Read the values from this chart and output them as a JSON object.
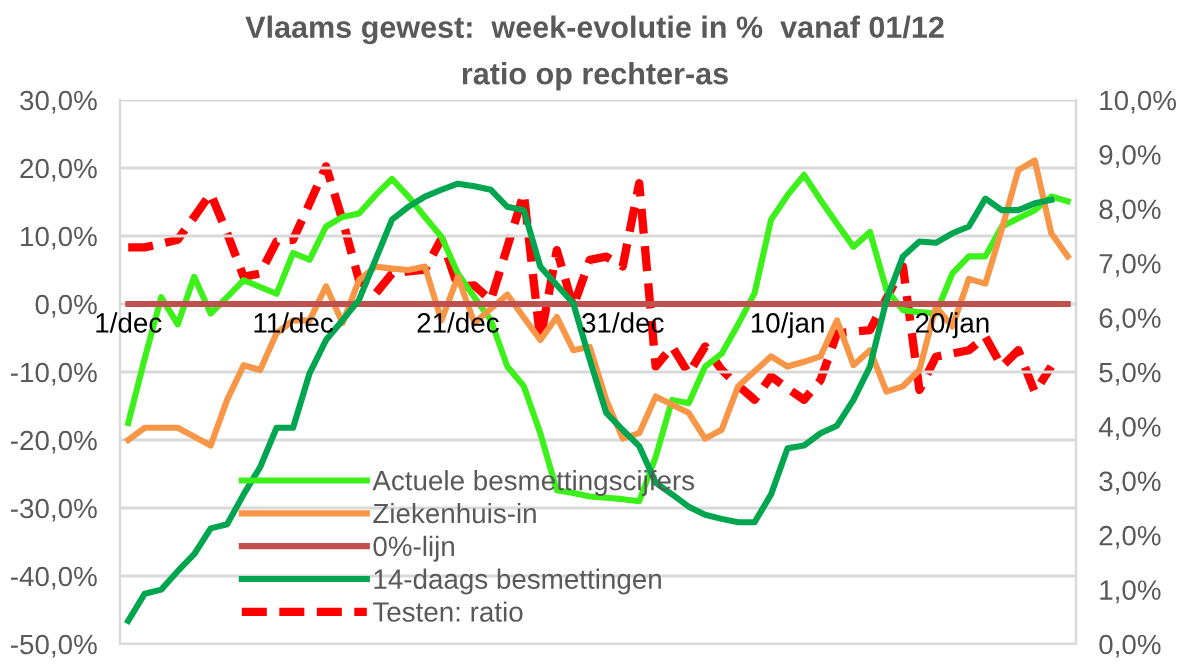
{
  "chart_data": {
    "type": "line",
    "title": "Vlaams gewest:  week-evolutie in %  vanaf 01/12",
    "subtitle": "ratio op rechter-as",
    "categories": [
      "1/dec",
      null,
      null,
      null,
      null,
      null,
      null,
      null,
      null,
      null,
      "11/dec",
      null,
      null,
      null,
      null,
      null,
      null,
      null,
      null,
      null,
      "21/dec",
      null,
      null,
      null,
      null,
      null,
      null,
      null,
      null,
      null,
      "31/dec",
      null,
      null,
      null,
      null,
      null,
      null,
      null,
      null,
      null,
      "10/jan",
      null,
      null,
      null,
      null,
      null,
      null,
      null,
      null,
      null,
      "20/jan",
      null,
      null,
      null,
      null,
      null,
      null,
      null
    ],
    "ylim": [
      -50,
      30
    ],
    "yticks": [
      {
        "value": -50,
        "label": "-50,0%"
      },
      {
        "value": -40,
        "label": "-40,0%"
      },
      {
        "value": -30,
        "label": "-30,0%"
      },
      {
        "value": -20,
        "label": "-20,0%"
      },
      {
        "value": -10,
        "label": "-10,0%"
      },
      {
        "value": 0,
        "label": "0,0%"
      },
      {
        "value": 10,
        "label": "10,0%"
      },
      {
        "value": 20,
        "label": "20,0%"
      },
      {
        "value": 30,
        "label": "30,0%"
      }
    ],
    "y2lim": [
      0,
      10
    ],
    "y2ticks": [
      {
        "value": 0,
        "label": "0,0%"
      },
      {
        "value": 1,
        "label": "1,0%"
      },
      {
        "value": 2,
        "label": "2,0%"
      },
      {
        "value": 3,
        "label": "3,0%"
      },
      {
        "value": 4,
        "label": "4,0%"
      },
      {
        "value": 5,
        "label": "5,0%"
      },
      {
        "value": 6,
        "label": "6,0%"
      },
      {
        "value": 7,
        "label": "7,0%"
      },
      {
        "value": 8,
        "label": "8,0%"
      },
      {
        "value": 9,
        "label": "9,0%"
      },
      {
        "value": 10,
        "label": "10,0%"
      }
    ],
    "grid": "y",
    "legend": "bottom left",
    "series": [
      {
        "name": "Actuele besmettingscijfers",
        "color": "#3cf01a",
        "line_style": "solid",
        "values": [
          -17.5,
          -8,
          1,
          -3,
          4,
          -1.4,
          1,
          3.5,
          2.5,
          1.5,
          7.5,
          6.5,
          11.4,
          12.8,
          13.3,
          16,
          18.4,
          15.8,
          12.8,
          9.9,
          4.5,
          1,
          -2.4,
          -9.2,
          -12.1,
          -19,
          -27.4,
          -27.8,
          -28.3,
          -28.5,
          -28.7,
          -29,
          -22.5,
          -14.1,
          -14.6,
          -9.2,
          -7.3,
          -3,
          1.6,
          12.4,
          16,
          19,
          15.3,
          11.8,
          8.4,
          10.6,
          2.1,
          -0.9,
          -1.2,
          -1.4,
          4.5,
          7,
          7,
          11.4,
          12.6,
          13.8,
          15.8,
          15.1
        ]
      },
      {
        "name": "Ziekenhuis-in",
        "color": "#f79646",
        "line_style": "solid",
        "values": [
          -20,
          -18.2,
          -18.2,
          -18.2,
          -19.5,
          -20.8,
          -14.1,
          -9,
          -9.7,
          -4.3,
          -2.4,
          -2.4,
          2.6,
          -2.8,
          3.5,
          5.5,
          5.2,
          5,
          5.5,
          -2.4,
          4,
          -2.8,
          -0.7,
          1.4,
          -2,
          -5.3,
          -1.9,
          -6.8,
          -6.3,
          -14.1,
          -19.8,
          -19,
          -13.6,
          -14.8,
          -16,
          -19.8,
          -18.5,
          -12.1,
          -9.9,
          -7.7,
          -9.2,
          -8.5,
          -7.7,
          -2.4,
          -9,
          -6.8,
          -12.9,
          -12.1,
          -9.7,
          -0.4,
          -3.3,
          3.7,
          3,
          11,
          19.7,
          21.1,
          10.4,
          7
        ]
      },
      {
        "name": "0%-lijn",
        "color": "#c0504d",
        "line_style": "solid",
        "values": [
          0,
          0,
          0,
          0,
          0,
          0,
          0,
          0,
          0,
          0,
          0,
          0,
          0,
          0,
          0,
          0,
          0,
          0,
          0,
          0,
          0,
          0,
          0,
          0,
          0,
          0,
          0,
          0,
          0,
          0,
          0,
          0,
          0,
          0,
          0,
          0,
          0,
          0,
          0,
          0,
          0,
          0,
          0,
          0,
          0,
          0,
          0,
          0,
          0,
          0,
          0,
          0,
          0,
          0,
          0,
          0,
          0,
          0
        ]
      },
      {
        "name": "14-daags besmettingen",
        "color": "#00a550",
        "line_style": "solid",
        "values": [
          -46.6,
          -42.6,
          -42,
          -39.3,
          -36.8,
          -33,
          -32.4,
          -28,
          -24,
          -18.2,
          -18.2,
          -10.2,
          -5.3,
          -2.4,
          0.6,
          6.5,
          12.4,
          14.3,
          15.8,
          16.8,
          17.7,
          17.3,
          16.8,
          14.3,
          13.8,
          5.5,
          2.8,
          0.1,
          -8.2,
          -16,
          -18.5,
          -20.9,
          -26.3,
          -28,
          -29.8,
          -31,
          -31.6,
          -32.1,
          -32.1,
          -28,
          -21.2,
          -20.8,
          -19,
          -17.9,
          -14.1,
          -9.2,
          0.6,
          7,
          9.2,
          9,
          10.4,
          11.4,
          15.5,
          13.8,
          13.8,
          14.8,
          15.3,
          null
        ]
      },
      {
        "name": "Testen: ratio",
        "color": "#ff0000",
        "line_style": "dashed",
        "axis": "y2",
        "values": [
          7.29,
          7.29,
          7.36,
          7.43,
          7.85,
          8.28,
          7.55,
          6.75,
          6.81,
          7.4,
          7.43,
          8.1,
          8.78,
          7.79,
          6.69,
          6.44,
          6.81,
          6.85,
          6.88,
          7.45,
          6.57,
          6.59,
          6.32,
          7.3,
          8.28,
          5.59,
          7.24,
          6.2,
          7.06,
          7.12,
          6.94,
          8.47,
          5.1,
          5.47,
          4.97,
          5.47,
          5.04,
          4.75,
          4.49,
          4.92,
          4.7,
          4.49,
          4.85,
          5.71,
          5.74,
          5.77,
          6.35,
          6.94,
          4.67,
          5.28,
          5.34,
          5.4,
          5.65,
          5.1,
          5.4,
          4.63,
          5.1,
          null
        ]
      }
    ]
  }
}
